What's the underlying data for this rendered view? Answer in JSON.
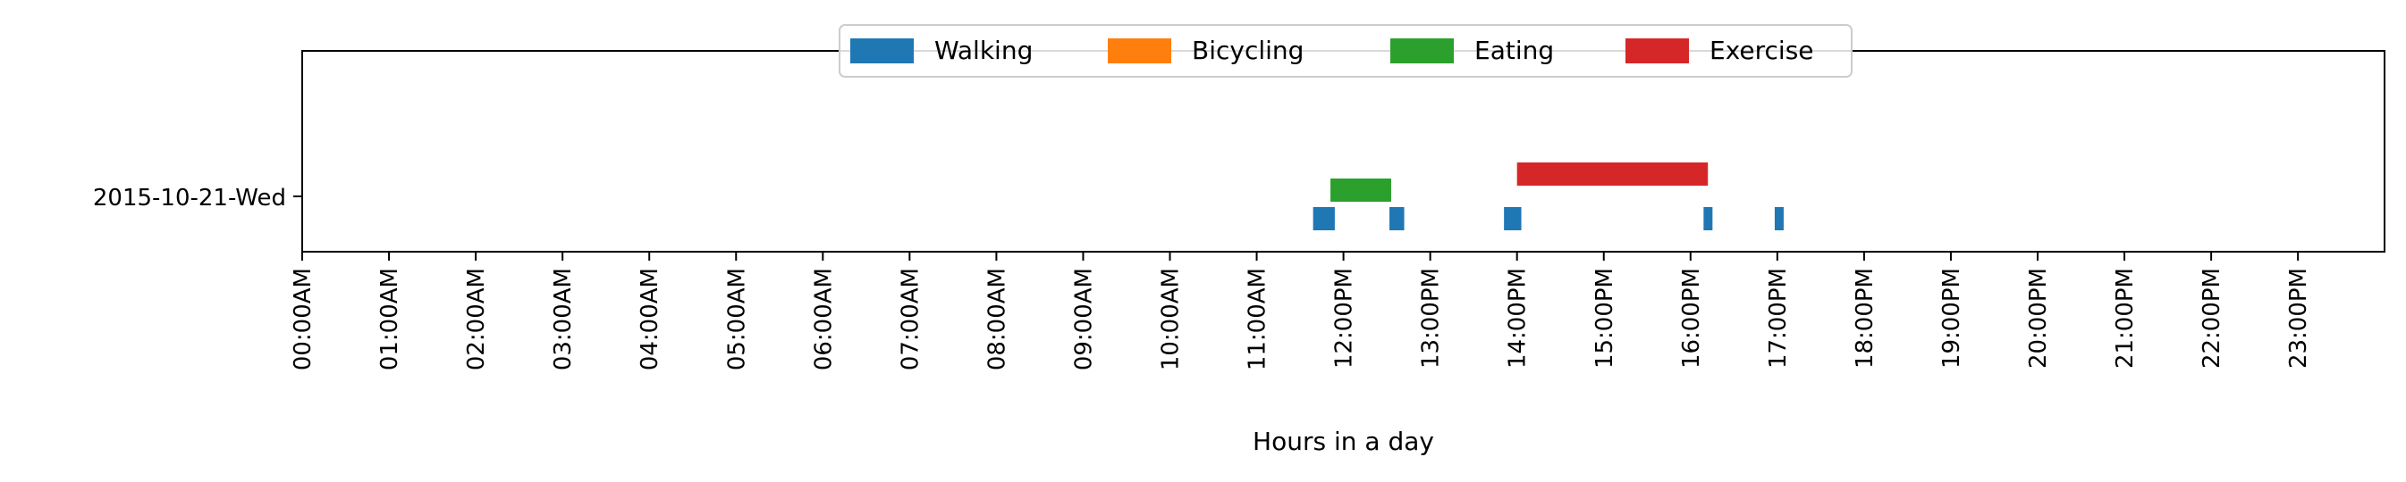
{
  "chart_data": {
    "type": "bar",
    "orientation": "horizontal-timeline",
    "title": "",
    "xlabel": "Hours in a day",
    "ylabel": "",
    "xlim": [
      0,
      24
    ],
    "x_ticks": [
      0,
      1,
      2,
      3,
      4,
      5,
      6,
      7,
      8,
      9,
      10,
      11,
      12,
      13,
      14,
      15,
      16,
      17,
      18,
      19,
      20,
      21,
      22,
      23
    ],
    "x_tick_labels": [
      "00:00AM",
      "01:00AM",
      "02:00AM",
      "03:00AM",
      "04:00AM",
      "05:00AM",
      "06:00AM",
      "07:00AM",
      "08:00AM",
      "09:00AM",
      "10:00AM",
      "11:00AM",
      "12:00PM",
      "13:00PM",
      "14:00PM",
      "15:00PM",
      "16:00PM",
      "17:00PM",
      "18:00PM",
      "19:00PM",
      "20:00PM",
      "21:00PM",
      "22:00PM",
      "23:00PM"
    ],
    "categories": [
      "2015-10-21-Wed"
    ],
    "legend": {
      "placement": "upper center",
      "columns": 4
    },
    "series": [
      {
        "name": "Walking",
        "color": "#1f77b4",
        "intervals": [
          [
            11.65,
            11.9
          ],
          [
            12.53,
            12.7
          ],
          [
            13.85,
            14.05
          ],
          [
            16.15,
            16.25
          ],
          [
            16.97,
            17.07
          ]
        ]
      },
      {
        "name": "Bicycling",
        "color": "#ff7f0e",
        "intervals": []
      },
      {
        "name": "Eating",
        "color": "#2ca02c",
        "intervals": [
          [
            11.85,
            12.55
          ]
        ]
      },
      {
        "name": "Exercise",
        "color": "#d62728",
        "intervals": [
          [
            14.0,
            16.2
          ]
        ]
      }
    ]
  }
}
